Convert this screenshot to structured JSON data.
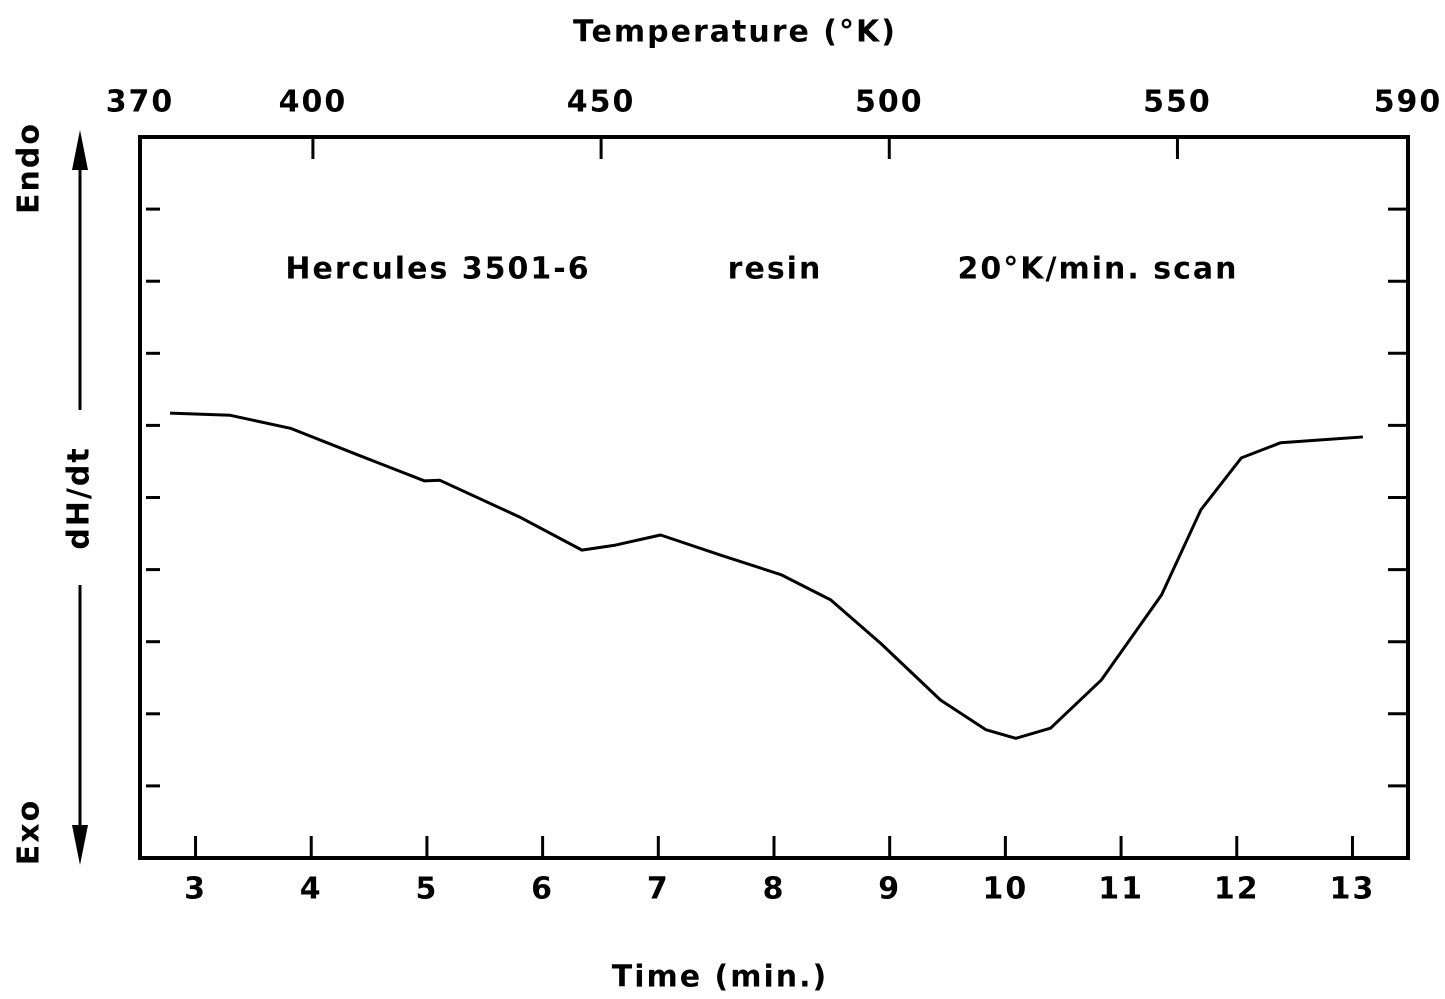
{
  "chart_data": {
    "type": "line",
    "title": "Temperature (°K)",
    "x_label": "Time (min.)",
    "y_label": "dH/dt",
    "y_top_label": "Endo",
    "y_bottom_label": "Exo",
    "annotations": [
      "Hercules 3501-6",
      "resin",
      "20°K/min. scan"
    ],
    "xlim": [
      2.52,
      13.48
    ],
    "xticks": [
      3,
      4,
      5,
      6,
      7,
      8,
      9,
      10,
      11,
      12,
      13
    ],
    "x2lim": [
      370,
      590
    ],
    "x2ticks": [
      370,
      400,
      450,
      500,
      550,
      590
    ],
    "ylim": [
      0,
      10
    ],
    "yticks": [
      1,
      2,
      3,
      4,
      5,
      6,
      7,
      8,
      9
    ],
    "series": [
      {
        "color": "#000000",
        "x": [
          2.78,
          3.3,
          3.82,
          4.42,
          4.98,
          5.11,
          5.8,
          6.34,
          6.63,
          7.02,
          7.54,
          8.06,
          8.49,
          8.92,
          9.44,
          9.83,
          10.09,
          10.39,
          10.83,
          11.35,
          11.69,
          12.04,
          12.38,
          12.73,
          13.09
        ],
        "values": [
          6.17,
          6.14,
          5.96,
          5.58,
          5.23,
          5.24,
          4.73,
          4.27,
          4.34,
          4.48,
          4.2,
          3.93,
          3.58,
          2.98,
          2.19,
          1.78,
          1.66,
          1.8,
          2.47,
          3.65,
          4.83,
          5.55,
          5.76,
          5.8,
          5.84
        ]
      }
    ]
  }
}
